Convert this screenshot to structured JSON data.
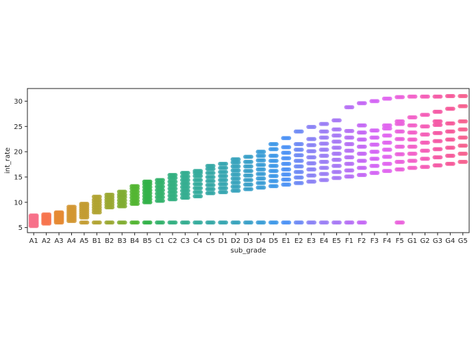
{
  "chart_data": {
    "type": "scatter",
    "subtype": "strip",
    "title": "",
    "xlabel": "sub_grade",
    "ylabel": "int_rate",
    "categories": [
      "A1",
      "A2",
      "A3",
      "A4",
      "A5",
      "B1",
      "B2",
      "B3",
      "B4",
      "B5",
      "C1",
      "C2",
      "C3",
      "C4",
      "C5",
      "D1",
      "D2",
      "D3",
      "D4",
      "D5",
      "E1",
      "E2",
      "E3",
      "E4",
      "E5",
      "F1",
      "F2",
      "F3",
      "F4",
      "F5",
      "G1",
      "G2",
      "G3",
      "G4",
      "G5"
    ],
    "ylim": [
      4,
      32.5
    ],
    "yticks": [
      5,
      10,
      15,
      20,
      25,
      30
    ],
    "grid": false,
    "legend": "none",
    "colors": [
      "#f77189",
      "#f7754f",
      "#e58a33",
      "#d29633",
      "#c39c32",
      "#b0a331",
      "#9aa831",
      "#80ad31",
      "#52b531",
      "#31b148",
      "#32b26b",
      "#33af80",
      "#34ad8f",
      "#35ab9c",
      "#36a8a6",
      "#37a6b0",
      "#38a3bc",
      "#3aa0c8",
      "#3c9dd6",
      "#4099e8",
      "#4e93f4",
      "#6f8bf4",
      "#8b83f4",
      "#9b7ff4",
      "#a779f4",
      "#b671f4",
      "#c469f4",
      "#d466f4",
      "#e066f0",
      "#ea63dc",
      "#f261c9",
      "#f45eb7",
      "#f55ba6",
      "#f6599a",
      "#f6618f"
    ],
    "series": [
      {
        "category": "A1",
        "values": [
          5.3,
          5.5,
          5.8,
          6.0,
          6.3,
          6.6,
          6.9,
          7.2,
          7.4
        ]
      },
      {
        "category": "A2",
        "values": [
          5.8,
          6.1,
          6.4,
          6.7,
          7.0,
          7.3,
          7.6
        ]
      },
      {
        "category": "A3",
        "values": [
          6.0,
          6.3,
          6.6,
          6.9,
          7.2,
          7.5,
          7.8,
          8.0
        ]
      },
      {
        "category": "A4",
        "values": [
          6.3,
          6.7,
          7.1,
          7.5,
          7.9,
          8.3,
          8.7,
          9.1
        ]
      },
      {
        "category": "A5",
        "values": [
          6.0,
          7.0,
          7.4,
          7.8,
          8.2,
          8.6,
          9.0,
          9.4,
          9.7
        ]
      },
      {
        "category": "B1",
        "values": [
          6.0,
          8.0,
          8.5,
          9.0,
          9.5,
          10.0,
          10.5,
          11.1
        ]
      },
      {
        "category": "B2",
        "values": [
          6.0,
          9.0,
          9.5,
          10.0,
          10.5,
          11.0,
          11.5
        ]
      },
      {
        "category": "B3",
        "values": [
          6.0,
          9.2,
          9.8,
          10.4,
          11.0,
          11.5,
          12.1
        ]
      },
      {
        "category": "B4",
        "values": [
          6.0,
          9.7,
          10.3,
          10.9,
          11.5,
          12.1,
          12.7,
          13.2
        ]
      },
      {
        "category": "B5",
        "values": [
          6.0,
          10.0,
          10.6,
          11.2,
          11.8,
          12.4,
          13.0,
          13.6,
          14.1
        ]
      },
      {
        "category": "C1",
        "values": [
          6.0,
          10.3,
          11.0,
          11.7,
          12.4,
          13.1,
          13.8,
          14.4
        ]
      },
      {
        "category": "C2",
        "values": [
          6.0,
          10.6,
          11.3,
          12.0,
          12.7,
          13.4,
          14.1,
          14.8,
          15.4
        ]
      },
      {
        "category": "C3",
        "values": [
          6.0,
          10.9,
          11.6,
          12.3,
          13.0,
          13.7,
          14.4,
          15.1,
          15.8
        ]
      },
      {
        "category": "C4",
        "values": [
          6.0,
          11.2,
          12.0,
          12.8,
          13.6,
          14.4,
          15.2,
          15.8,
          16.2
        ]
      },
      {
        "category": "C5",
        "values": [
          6.0,
          11.8,
          12.6,
          13.4,
          14.2,
          15.0,
          15.8,
          16.6,
          17.2
        ]
      },
      {
        "category": "D1",
        "values": [
          6.0,
          12.0,
          12.8,
          13.6,
          14.4,
          15.2,
          16.0,
          16.8,
          17.6
        ]
      },
      {
        "category": "D2",
        "values": [
          6.0,
          12.3,
          13.1,
          13.9,
          14.7,
          15.5,
          16.3,
          17.1,
          17.9,
          18.5
        ]
      },
      {
        "category": "D3",
        "values": [
          6.0,
          12.6,
          13.5,
          14.4,
          15.3,
          16.2,
          17.1,
          18.0,
          19.0
        ]
      },
      {
        "category": "D4",
        "values": [
          6.0,
          12.9,
          13.8,
          14.7,
          15.6,
          16.5,
          17.4,
          18.3,
          19.2,
          20.0
        ]
      },
      {
        "category": "D5",
        "values": [
          6.0,
          13.2,
          14.2,
          15.2,
          16.2,
          17.2,
          18.2,
          19.2,
          20.5,
          21.5
        ]
      },
      {
        "category": "E1",
        "values": [
          6.0,
          13.5,
          14.5,
          15.5,
          16.5,
          17.6,
          18.7,
          19.8,
          20.9,
          22.7
        ]
      },
      {
        "category": "E2",
        "values": [
          6.0,
          13.8,
          14.9,
          16.0,
          17.1,
          18.2,
          19.3,
          20.4,
          21.5,
          24.0
        ]
      },
      {
        "category": "E3",
        "values": [
          6.0,
          14.1,
          15.3,
          16.5,
          17.7,
          18.9,
          20.1,
          21.3,
          22.5,
          24.9
        ]
      },
      {
        "category": "E4",
        "values": [
          6.0,
          14.4,
          15.6,
          16.8,
          18.0,
          19.2,
          20.4,
          21.6,
          22.8,
          24.0,
          25.5
        ]
      },
      {
        "category": "E5",
        "values": [
          6.0,
          14.8,
          16.0,
          17.2,
          18.4,
          19.6,
          20.8,
          22.0,
          23.2,
          24.4,
          26.2
        ]
      },
      {
        "category": "F1",
        "values": [
          6.0,
          15.1,
          16.3,
          17.6,
          18.9,
          20.2,
          21.5,
          22.8,
          24.1,
          28.8
        ]
      },
      {
        "category": "F2",
        "values": [
          6.0,
          15.4,
          16.8,
          18.2,
          19.6,
          21.0,
          22.4,
          23.8,
          25.2,
          29.6
        ]
      },
      {
        "category": "F3",
        "values": [
          15.8,
          17.2,
          18.6,
          20.0,
          21.4,
          22.8,
          24.2,
          30.0
        ]
      },
      {
        "category": "F4",
        "values": [
          16.2,
          17.6,
          19.0,
          20.4,
          21.8,
          23.2,
          24.6,
          25.2,
          30.5
        ]
      },
      {
        "category": "F5",
        "values": [
          6.0,
          16.5,
          18.0,
          19.5,
          21.0,
          22.5,
          24.0,
          25.5,
          26.0,
          30.8
        ]
      },
      {
        "category": "G1",
        "values": [
          16.8,
          18.2,
          19.6,
          21.0,
          22.4,
          23.8,
          25.2,
          26.8,
          30.9
        ]
      },
      {
        "category": "G2",
        "values": [
          17.0,
          18.6,
          20.2,
          21.8,
          23.4,
          25.0,
          27.3,
          30.9
        ]
      },
      {
        "category": "G3",
        "values": [
          17.3,
          18.9,
          20.5,
          22.1,
          23.7,
          25.3,
          26.0,
          27.9,
          30.9
        ]
      },
      {
        "category": "G4",
        "values": [
          17.6,
          19.2,
          20.8,
          22.4,
          24.0,
          25.6,
          28.5,
          31.0
        ]
      },
      {
        "category": "G5",
        "values": [
          18.0,
          19.6,
          21.2,
          22.8,
          24.4,
          26.0,
          29.0,
          31.0
        ]
      }
    ]
  }
}
